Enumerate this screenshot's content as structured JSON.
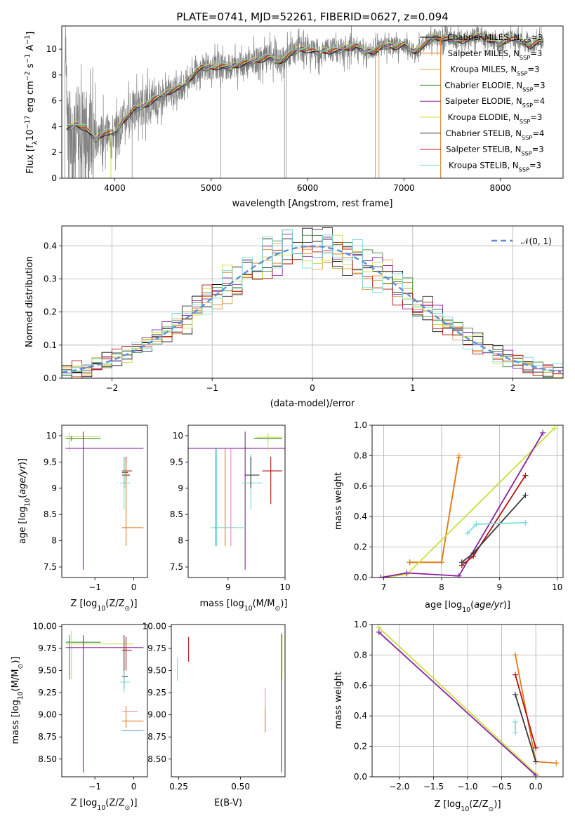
{
  "figure": {
    "title": "PLATE=0741, MJD=52261, FIBERID=0627, z=0.094"
  },
  "colors": {
    "grey": "#808080",
    "blue_dash": "#5a8fd8",
    "series": [
      "#000000",
      "#e07b1a",
      "#d8a04a",
      "#3d8a3d",
      "#8b1fa0",
      "#c8e040",
      "#3a3a3a",
      "#b41414",
      "#78dcdc"
    ]
  },
  "legend": [
    {
      "label": "Chabrier MILES, N",
      "sub": "SSP",
      "suffix": "=3"
    },
    {
      "label": "Salpeter MILES, N",
      "sub": "SSP",
      "suffix": "=3"
    },
    {
      "label": "Kroupa MILES, N",
      "sub": "SSP",
      "suffix": "=3"
    },
    {
      "label": "Chabrier ELODIE, N",
      "sub": "SSP",
      "suffix": "=3"
    },
    {
      "label": "Salpeter ELODIE, N",
      "sub": "SSP",
      "suffix": "=4"
    },
    {
      "label": "Kroupa ELODIE, N",
      "sub": "SSP",
      "suffix": "=3"
    },
    {
      "label": "Chabrier STELIB, N",
      "sub": "SSP",
      "suffix": "=4"
    },
    {
      "label": "Salpeter STELIB, N",
      "sub": "SSP",
      "suffix": "=3"
    },
    {
      "label": "Kroupa STELIB, N",
      "sub": "SSP",
      "suffix": "=3"
    }
  ],
  "chart_data": [
    {
      "id": "spectrum",
      "type": "line",
      "xlabel": "wavelength [Angstrom, rest frame]",
      "ylabel": "Flux [f",
      "ylabel_parts": {
        "lam": "λ",
        "mant": "10",
        "exp": "−17",
        "mid": " erg cm",
        "e2": "−2",
        "s": " s",
        "e1": "−1",
        " A": " A",
        "eA": "−1",
        "end": "]"
      },
      "xlim": [
        3450,
        8650
      ],
      "ylim": [
        0,
        11.8
      ],
      "xticks": [
        4000,
        5000,
        6000,
        7000,
        8000
      ],
      "yticks": [
        0,
        2,
        4,
        6,
        8,
        10
      ],
      "model_x": [
        3500,
        3600,
        3700,
        3800,
        3900,
        4000,
        4100,
        4200,
        4300,
        4400,
        4500,
        4600,
        4700,
        4800,
        4850,
        4900,
        5000,
        5100,
        5200,
        5300,
        5400,
        5500,
        5600,
        5700,
        5800,
        5900,
        6000,
        6100,
        6200,
        6300,
        6400,
        6500,
        6600,
        6700,
        6800,
        6900,
        7000,
        7100,
        7200,
        7300,
        7400,
        7500,
        7600,
        7700,
        7800,
        7900,
        8000,
        8100,
        8200,
        8300,
        8400
      ],
      "model_y": [
        3.9,
        4.2,
        3.9,
        3.0,
        3.6,
        3.5,
        4.6,
        5.4,
        5.6,
        6.1,
        6.4,
        6.9,
        7.1,
        7.9,
        8.4,
        8.6,
        8.6,
        8.7,
        8.6,
        8.9,
        9.0,
        9.2,
        9.4,
        9.0,
        9.5,
        10.0,
        10.0,
        9.8,
        9.9,
        9.9,
        10.1,
        10.3,
        9.8,
        9.9,
        10.3,
        10.2,
        10.4,
        9.8,
        10.3,
        10.9,
        10.9,
        10.7,
        10.7,
        10.9,
        11.1,
        10.7,
        10.4,
        10.9,
        10.7,
        10.3,
        10.6
      ]
    },
    {
      "id": "residuals",
      "type": "histogram",
      "xlabel": "(data-model)/error",
      "ylabel": "Normed distribution",
      "xlim": [
        -2.5,
        2.5
      ],
      "ylim": [
        0,
        0.46
      ],
      "xticks": [
        -2,
        -1,
        0,
        1,
        2
      ],
      "yticks": [
        0.0,
        0.1,
        0.2,
        0.3,
        0.4
      ],
      "grid": true,
      "reference_curve": "𝒩(0, 1)"
    },
    {
      "id": "age-vs-Z",
      "type": "errorbar",
      "xlabel": "Z [log",
      "xlabel_tail": "(Z/Z",
      "ylabel": "age  [log",
      "ylabel_tail": "(age/yr)]",
      "xlim": [
        -1.85,
        0.35
      ],
      "ylim": [
        7.3,
        10.2
      ],
      "xticks": [
        -1,
        0
      ],
      "yticks": [
        7.5,
        8.0,
        8.5,
        9.0,
        9.5,
        10.0
      ]
    },
    {
      "id": "age-vs-mass",
      "type": "errorbar",
      "xlabel": "mass [log",
      "xlabel_tail": "(M/M",
      "xlim": [
        8.3,
        10.0
      ],
      "ylim": [
        7.3,
        10.2
      ],
      "xticks": [
        9,
        10
      ],
      "yticks": [
        7.5,
        8.0,
        8.5,
        9.0,
        9.5,
        10.0
      ]
    },
    {
      "id": "weight-vs-age",
      "type": "line",
      "xlabel": "age  [log",
      "xlabel_tail": "(age/yr)]",
      "ylabel": "mass weight",
      "xlim": [
        6.8,
        10.1
      ],
      "ylim": [
        0,
        1.0
      ],
      "xticks": [
        7,
        8,
        9,
        10
      ],
      "yticks": [
        0.0,
        0.2,
        0.4,
        0.6,
        0.8,
        1.0
      ],
      "grid": true,
      "series": [
        {
          "x": [
            7.45,
            8.0,
            8.3
          ],
          "y": [
            0.1,
            0.1,
            0.8
          ]
        },
        {
          "x": [
            7.45,
            8.0,
            8.3
          ],
          "y": [
            0.1,
            0.1,
            0.79
          ]
        },
        {
          "x": [
            6.95,
            7.4,
            9.95
          ],
          "y": [
            0.0,
            0.02,
            0.98
          ]
        },
        {
          "x": [
            6.95,
            7.4,
            8.3,
            9.75
          ],
          "y": [
            0.0,
            0.03,
            0.01,
            0.95
          ]
        },
        {
          "x": [
            8.35,
            8.55,
            9.45
          ],
          "y": [
            0.08,
            0.14,
            0.67
          ]
        },
        {
          "x": [
            8.35,
            8.55,
            9.45
          ],
          "y": [
            0.1,
            0.16,
            0.54
          ]
        },
        {
          "x": [
            8.45,
            8.6,
            9.45
          ],
          "y": [
            0.29,
            0.35,
            0.36
          ]
        }
      ]
    },
    {
      "id": "mass-vs-Z",
      "type": "errorbar",
      "xlabel": "Z [log",
      "xlabel_tail": "(Z/Z",
      "ylabel": "mass [log",
      "ylabel_tail": "(M/M",
      "xlim": [
        -1.85,
        0.35
      ],
      "ylim": [
        8.3,
        10.02
      ],
      "xticks": [
        -1,
        0
      ],
      "yticks": [
        8.5,
        8.75,
        9.0,
        9.25,
        9.5,
        9.75,
        10.0
      ]
    },
    {
      "id": "mass-vs-ebv",
      "type": "errorbar",
      "xlabel": "E(B-V)",
      "xlim": [
        0.22,
        0.68
      ],
      "ylim": [
        8.3,
        10.02
      ],
      "xticks": [
        0.25,
        0.5
      ],
      "yticks": [
        8.5,
        8.75,
        9.0,
        9.25,
        9.5,
        9.75,
        10.0
      ]
    },
    {
      "id": "weight-vs-Z",
      "type": "line",
      "xlabel": "Z [log",
      "xlabel_tail": "(Z/Z",
      "ylabel": "mass weight",
      "xlim": [
        -2.4,
        0.4
      ],
      "ylim": [
        0,
        1.0
      ],
      "xticks": [
        -2.0,
        -1.5,
        -1.0,
        -0.5,
        0.0
      ],
      "yticks": [
        0.0,
        0.2,
        0.4,
        0.6,
        0.8,
        1.0
      ],
      "grid": true,
      "series": [
        {
          "x": [
            -0.3,
            0.0,
            0.3
          ],
          "y": [
            0.8,
            0.1,
            0.09
          ]
        },
        {
          "x": [
            -2.3,
            0.0
          ],
          "y": [
            0.98,
            0.02
          ]
        },
        {
          "x": [
            -2.3,
            0.0
          ],
          "y": [
            0.95,
            0.01
          ]
        },
        {
          "x": [
            -0.3,
            0.0
          ],
          "y": [
            0.67,
            0.19
          ]
        },
        {
          "x": [
            -0.3,
            0.0
          ],
          "y": [
            0.54,
            0.1
          ]
        },
        {
          "x": [
            -0.3,
            -0.3
          ],
          "y": [
            0.36,
            0.29
          ]
        }
      ]
    }
  ]
}
